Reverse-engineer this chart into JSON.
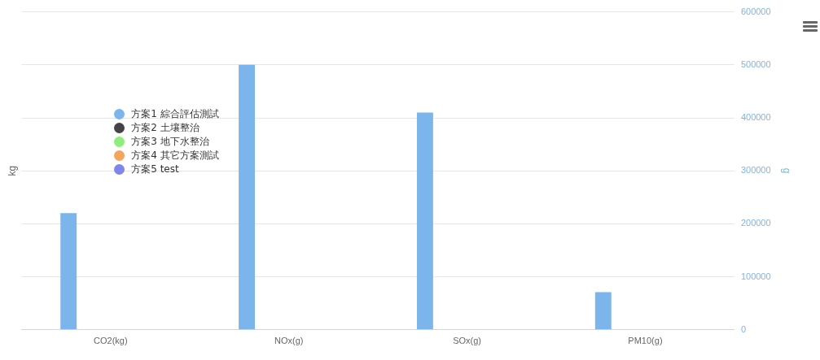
{
  "chart_data": {
    "type": "bar",
    "categories": [
      "CO2(kg)",
      "NOx(g)",
      "SOx(g)",
      "PM10(g)"
    ],
    "ylabel": "kg",
    "y2label": "g",
    "y2lim": [
      0,
      600000
    ],
    "y2ticks": [
      0,
      100000,
      200000,
      300000,
      400000,
      500000,
      600000
    ],
    "grid": "y",
    "legend": "top left",
    "series": [
      {
        "name": "方案1 綜合評估測試",
        "color": "#7cb5ec",
        "axis": "y2",
        "values": [
          220000,
          500000,
          410000,
          71000
        ]
      },
      {
        "name": "方案2 土壤整治",
        "color": "#434348",
        "axis": "y2",
        "values": [
          null,
          null,
          null,
          null
        ]
      },
      {
        "name": "方案3 地下水整治",
        "color": "#90ed7d",
        "axis": "y2",
        "values": [
          null,
          null,
          null,
          null
        ]
      },
      {
        "name": "方案4 其它方案測試",
        "color": "#f7a35c",
        "axis": "y2",
        "values": [
          null,
          null,
          null,
          null
        ]
      },
      {
        "name": "方案5 test",
        "color": "#8085e9",
        "axis": "y2",
        "values": [
          null,
          null,
          null,
          null
        ]
      }
    ]
  }
}
